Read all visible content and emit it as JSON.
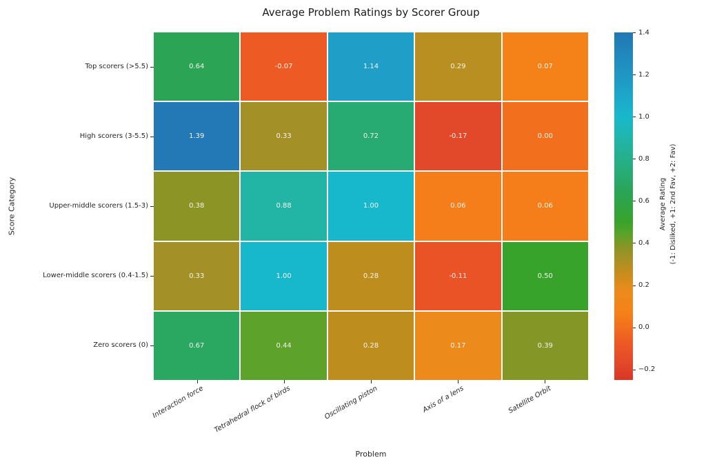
{
  "chart_data": {
    "type": "heatmap",
    "title": "Average Problem Ratings by Scorer Group",
    "xlabel": "Problem",
    "ylabel": "Score Category",
    "columns": [
      "Interaction force",
      "Tetrahedral flock of birds",
      "Oscillating piston",
      "Axis of a lens",
      "Satellite Orbit"
    ],
    "rows": [
      "Top scorers (>5.5)",
      "High scorers (3-5.5)",
      "Upper-middle scorers (1.5-3)",
      "Lower-middle scorers (0.4-1.5)",
      "Zero scorers (0)"
    ],
    "values": [
      [
        0.64,
        -0.07,
        1.14,
        0.29,
        0.07
      ],
      [
        1.39,
        0.33,
        0.72,
        -0.17,
        0.0
      ],
      [
        0.38,
        0.88,
        1.0,
        0.06,
        0.06
      ],
      [
        0.33,
        1.0,
        0.28,
        -0.11,
        0.5
      ],
      [
        0.67,
        0.44,
        0.28,
        0.17,
        0.39
      ]
    ],
    "value_format_decimals": 2,
    "annotation_text_color": "#f5f4ee",
    "grid_line_color": "#ffffff",
    "legend_position": "right-colorbar",
    "colorbar": {
      "label_line1": "Average Rating",
      "label_line2": "(-1: Disliked, +1: 2nd Fav, +2: Fav)",
      "tick_labels": [
        "1.4",
        "1.2",
        "1.0",
        "0.8",
        "0.6",
        "0.4",
        "0.2",
        "0.0",
        "−0.2"
      ],
      "tick_values": [
        1.4,
        1.2,
        1.0,
        0.8,
        0.6,
        0.4,
        0.2,
        0.0,
        -0.2
      ],
      "vmin": -0.25,
      "vmax": 1.4
    },
    "colormap_stops": [
      [
        -0.3,
        "#d62b24"
      ],
      [
        -0.17,
        "#e2482a"
      ],
      [
        -0.07,
        "#ee5a24"
      ],
      [
        0.0,
        "#f26f1d"
      ],
      [
        0.07,
        "#f58119"
      ],
      [
        0.17,
        "#ec8b1c"
      ],
      [
        0.28,
        "#bd8e1e"
      ],
      [
        0.33,
        "#a39127"
      ],
      [
        0.38,
        "#8b9425"
      ],
      [
        0.44,
        "#5ca22b"
      ],
      [
        0.5,
        "#38a32b"
      ],
      [
        0.64,
        "#2ba456"
      ],
      [
        0.72,
        "#28ab72"
      ],
      [
        0.88,
        "#22b4a4"
      ],
      [
        1.0,
        "#18b8cc"
      ],
      [
        1.14,
        "#1f9fc8"
      ],
      [
        1.4,
        "#2277b4"
      ]
    ]
  }
}
